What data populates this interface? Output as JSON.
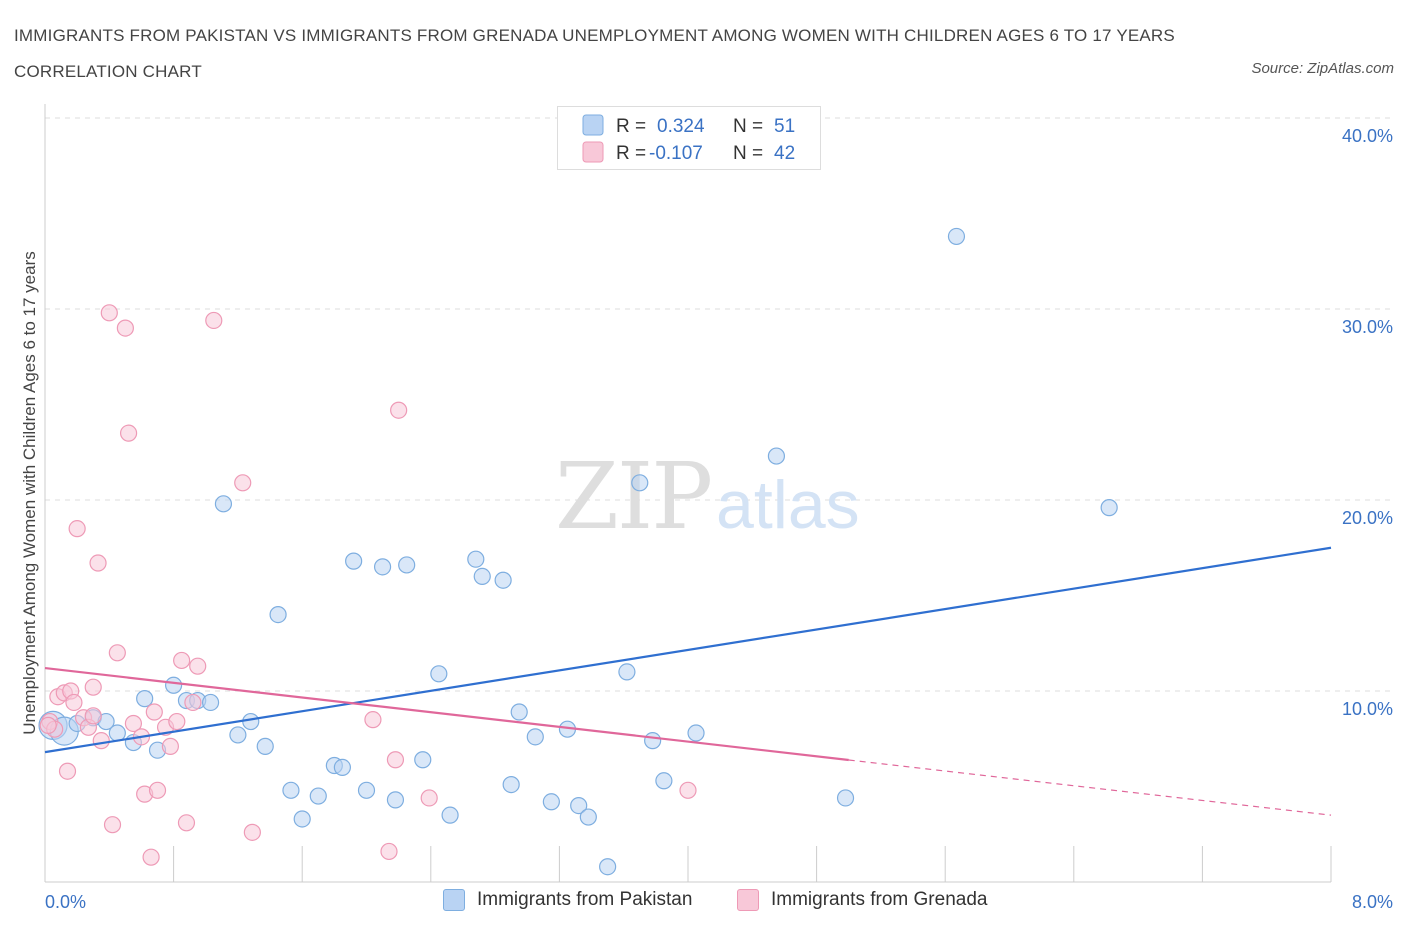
{
  "title": "IMMIGRANTS FROM PAKISTAN VS IMMIGRANTS FROM GRENADA UNEMPLOYMENT AMONG WOMEN WITH CHILDREN AGES 6 TO 17 YEARS CORRELATION CHART",
  "source": "Source: ZipAtlas.com",
  "watermark": {
    "zip": "ZIP",
    "atlas": "atlas"
  },
  "legend": {
    "rows": [
      {
        "r_label": "R =",
        "r_value": "0.324",
        "n_label": "N =",
        "n_value": "51"
      },
      {
        "r_label": "R =",
        "r_value": "-0.107",
        "n_label": "N =",
        "n_value": "42"
      }
    ]
  },
  "colors": {
    "pakistan_fill": "#b9d3f3",
    "pakistan_stroke": "#7eaee0",
    "pakistan_line": "#2f6fd0",
    "grenada_fill": "#f8c8d8",
    "grenada_stroke": "#ee9ab6",
    "grenada_line": "#e0679a",
    "tick_label": "#3a72c4",
    "grid": "#dddddd"
  },
  "chart_data": {
    "type": "scatter",
    "title": "IMMIGRANTS FROM PAKISTAN VS IMMIGRANTS FROM GRENADA UNEMPLOYMENT AMONG WOMEN WITH CHILDREN AGES 6 TO 17 YEARS CORRELATION CHART",
    "xlabel": "",
    "ylabel": "Unemployment Among Women with Children Ages 6 to 17 years",
    "xlim": [
      0,
      8
    ],
    "ylim": [
      0,
      40
    ],
    "x_tick_labels": [
      "0.0%",
      "8.0%"
    ],
    "y_ticks": [
      10,
      20,
      30,
      40
    ],
    "y_tick_labels": [
      "10.0%",
      "20.0%",
      "30.0%",
      "40.0%"
    ],
    "grid": true,
    "legend_position": "top-center",
    "series": [
      {
        "name": "Immigrants from Pakistan",
        "r": 0.324,
        "n": 51,
        "trend": {
          "x": [
            0.0,
            8.0
          ],
          "y": [
            6.8,
            17.5
          ],
          "dashed_from_x": null
        },
        "points": [
          {
            "x": 0.05,
            "y": 8.2,
            "big": true
          },
          {
            "x": 0.12,
            "y": 7.9,
            "big": true
          },
          {
            "x": 0.2,
            "y": 8.3
          },
          {
            "x": 0.3,
            "y": 8.6
          },
          {
            "x": 0.38,
            "y": 8.4
          },
          {
            "x": 0.45,
            "y": 7.8
          },
          {
            "x": 0.55,
            "y": 7.3
          },
          {
            "x": 0.62,
            "y": 9.6
          },
          {
            "x": 0.7,
            "y": 6.9
          },
          {
            "x": 0.8,
            "y": 10.3
          },
          {
            "x": 0.88,
            "y": 9.5
          },
          {
            "x": 0.95,
            "y": 9.5
          },
          {
            "x": 1.03,
            "y": 9.4
          },
          {
            "x": 1.11,
            "y": 19.8
          },
          {
            "x": 1.2,
            "y": 7.7
          },
          {
            "x": 1.28,
            "y": 8.4
          },
          {
            "x": 1.37,
            "y": 7.1
          },
          {
            "x": 1.45,
            "y": 14.0
          },
          {
            "x": 1.53,
            "y": 4.8
          },
          {
            "x": 1.6,
            "y": 3.3
          },
          {
            "x": 1.7,
            "y": 4.5
          },
          {
            "x": 1.8,
            "y": 6.1
          },
          {
            "x": 1.85,
            "y": 6.0
          },
          {
            "x": 1.92,
            "y": 16.8
          },
          {
            "x": 2.0,
            "y": 4.8
          },
          {
            "x": 2.1,
            "y": 16.5
          },
          {
            "x": 2.18,
            "y": 4.3
          },
          {
            "x": 2.25,
            "y": 16.6
          },
          {
            "x": 2.35,
            "y": 6.4
          },
          {
            "x": 2.45,
            "y": 10.9
          },
          {
            "x": 2.52,
            "y": 3.5
          },
          {
            "x": 2.68,
            "y": 16.9
          },
          {
            "x": 2.72,
            "y": 16.0
          },
          {
            "x": 2.85,
            "y": 15.8
          },
          {
            "x": 2.9,
            "y": 5.1
          },
          {
            "x": 2.95,
            "y": 8.9
          },
          {
            "x": 3.05,
            "y": 7.6
          },
          {
            "x": 3.15,
            "y": 4.2
          },
          {
            "x": 3.25,
            "y": 8.0
          },
          {
            "x": 3.32,
            "y": 4.0
          },
          {
            "x": 3.38,
            "y": 3.4
          },
          {
            "x": 3.5,
            "y": 0.8
          },
          {
            "x": 3.62,
            "y": 11.0
          },
          {
            "x": 3.7,
            "y": 20.9
          },
          {
            "x": 3.78,
            "y": 7.4
          },
          {
            "x": 3.85,
            "y": 5.3
          },
          {
            "x": 4.05,
            "y": 7.8
          },
          {
            "x": 4.55,
            "y": 22.3
          },
          {
            "x": 4.98,
            "y": 4.4
          },
          {
            "x": 5.67,
            "y": 33.8
          },
          {
            "x": 6.62,
            "y": 19.6
          }
        ]
      },
      {
        "name": "Immigrants from Grenada",
        "r": -0.107,
        "n": 42,
        "trend": {
          "x": [
            0.0,
            8.0
          ],
          "y": [
            11.2,
            3.5
          ],
          "dashed_from_x": 5.0
        },
        "points": [
          {
            "x": 0.03,
            "y": 8.4
          },
          {
            "x": 0.06,
            "y": 8.0
          },
          {
            "x": 0.08,
            "y": 9.7
          },
          {
            "x": 0.12,
            "y": 9.9
          },
          {
            "x": 0.14,
            "y": 5.8
          },
          {
            "x": 0.16,
            "y": 10.0
          },
          {
            "x": 0.18,
            "y": 9.4
          },
          {
            "x": 0.2,
            "y": 18.5
          },
          {
            "x": 0.24,
            "y": 8.6
          },
          {
            "x": 0.27,
            "y": 8.1
          },
          {
            "x": 0.3,
            "y": 8.7
          },
          {
            "x": 0.3,
            "y": 10.2
          },
          {
            "x": 0.33,
            "y": 16.7
          },
          {
            "x": 0.35,
            "y": 7.4
          },
          {
            "x": 0.4,
            "y": 29.8
          },
          {
            "x": 0.42,
            "y": 3.0
          },
          {
            "x": 0.45,
            "y": 12.0
          },
          {
            "x": 0.5,
            "y": 29.0
          },
          {
            "x": 0.52,
            "y": 23.5
          },
          {
            "x": 0.55,
            "y": 8.3
          },
          {
            "x": 0.6,
            "y": 7.6
          },
          {
            "x": 0.62,
            "y": 4.6
          },
          {
            "x": 0.66,
            "y": 1.3
          },
          {
            "x": 0.68,
            "y": 8.9
          },
          {
            "x": 0.7,
            "y": 4.8
          },
          {
            "x": 0.75,
            "y": 8.1
          },
          {
            "x": 0.78,
            "y": 7.1
          },
          {
            "x": 0.82,
            "y": 8.4
          },
          {
            "x": 0.85,
            "y": 11.6
          },
          {
            "x": 0.88,
            "y": 3.1
          },
          {
            "x": 0.92,
            "y": 9.4
          },
          {
            "x": 0.95,
            "y": 11.3
          },
          {
            "x": 1.05,
            "y": 29.4
          },
          {
            "x": 1.23,
            "y": 20.9
          },
          {
            "x": 1.29,
            "y": 2.6
          },
          {
            "x": 2.04,
            "y": 8.5
          },
          {
            "x": 2.14,
            "y": 1.6
          },
          {
            "x": 2.18,
            "y": 6.4
          },
          {
            "x": 2.2,
            "y": 24.7
          },
          {
            "x": 2.39,
            "y": 4.4
          },
          {
            "x": 4.0,
            "y": 4.8
          },
          {
            "x": 0.02,
            "y": 8.2
          }
        ]
      }
    ]
  }
}
